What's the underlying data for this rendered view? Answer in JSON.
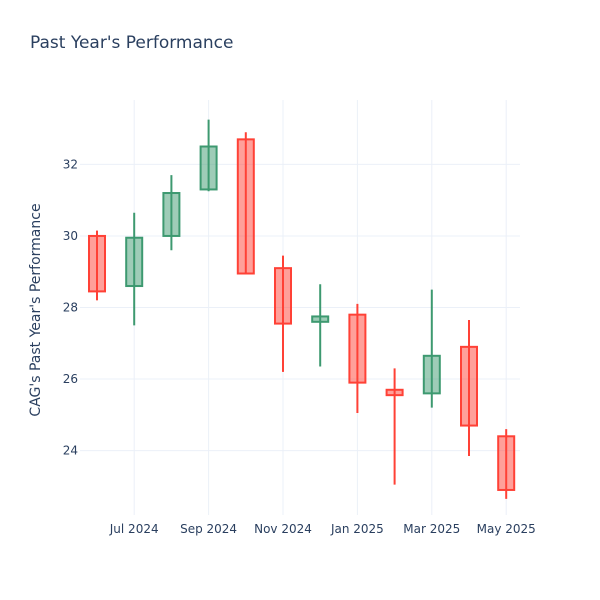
{
  "chart_data": {
    "type": "candlestick",
    "title": "Past Year's Performance",
    "xlabel": "",
    "ylabel": "CAG's Past Year's Performance",
    "ylim": [
      22.2,
      33.8
    ],
    "y_ticks": [
      24,
      26,
      28,
      30,
      32
    ],
    "x_ticks": [
      {
        "month": 1,
        "label": "Jul 2024"
      },
      {
        "month": 3,
        "label": "Sep 2024"
      },
      {
        "month": 5,
        "label": "Nov 2024"
      },
      {
        "month": 7,
        "label": "Jan 2025"
      },
      {
        "month": 9,
        "label": "Mar 2025"
      },
      {
        "month": 11,
        "label": "May 2025"
      }
    ],
    "grid": true,
    "colors": {
      "increasing": "#3d9970",
      "decreasing": "#ff4136",
      "increasing_fill": "rgba(61,153,112,0.5)",
      "decreasing_fill": "rgba(255,65,54,0.5)"
    },
    "candles": [
      {
        "month": "Jun 2024",
        "open": 30.0,
        "high": 30.15,
        "low": 28.2,
        "close": 28.45
      },
      {
        "month": "Jul 2024",
        "open": 28.6,
        "high": 30.65,
        "low": 27.5,
        "close": 29.95
      },
      {
        "month": "Aug 2024",
        "open": 30.0,
        "high": 31.7,
        "low": 29.6,
        "close": 31.2
      },
      {
        "month": "Sep 2024",
        "open": 31.3,
        "high": 33.25,
        "low": 31.25,
        "close": 32.5
      },
      {
        "month": "Oct 2024",
        "open": 32.7,
        "high": 32.9,
        "low": 28.95,
        "close": 28.95
      },
      {
        "month": "Nov 2024",
        "open": 29.1,
        "high": 29.45,
        "low": 26.2,
        "close": 27.55
      },
      {
        "month": "Dec 2024",
        "open": 27.6,
        "high": 28.65,
        "low": 26.35,
        "close": 27.75
      },
      {
        "month": "Jan 2025",
        "open": 27.8,
        "high": 28.1,
        "low": 25.05,
        "close": 25.9
      },
      {
        "month": "Feb 2025",
        "open": 25.7,
        "high": 26.3,
        "low": 23.05,
        "close": 25.55
      },
      {
        "month": "Mar 2025",
        "open": 25.6,
        "high": 28.5,
        "low": 25.2,
        "close": 26.65
      },
      {
        "month": "Apr 2025",
        "open": 26.9,
        "high": 27.65,
        "low": 23.85,
        "close": 24.7
      },
      {
        "month": "May 2025",
        "open": 24.4,
        "high": 24.6,
        "low": 22.65,
        "close": 22.9
      }
    ]
  }
}
